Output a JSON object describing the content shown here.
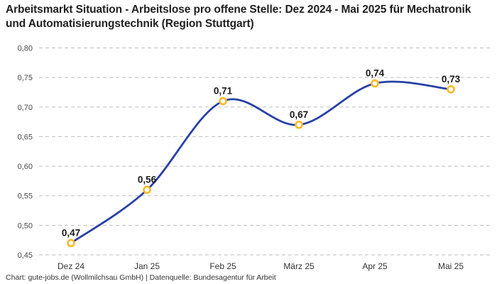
{
  "title": "Arbeitsmarkt Situation - Arbeitslose pro offene Stelle: Dez 2024 - Mai 2025 für Mechatronik und Automatisierungstechnik (Region Stuttgart)",
  "footer": "Chart: gute-jobs.de (Wollmilchsau GmbH) | Datenquelle: Bundesagentur für Arbeit",
  "chart_data": {
    "type": "line",
    "title": "Arbeitsmarkt Situation - Arbeitslose pro offene Stelle: Dez 2024 - Mai 2025 für Mechatronik und Automatisierungstechnik (Region Stuttgart)",
    "categories": [
      "Dez 24",
      "Jan 25",
      "Feb 25",
      "März 25",
      "Apr 25",
      "Mai 25"
    ],
    "values": [
      0.47,
      0.56,
      0.71,
      0.67,
      0.74,
      0.73
    ],
    "value_labels": [
      "0,47",
      "0,56",
      "0,71",
      "0,67",
      "0,74",
      "0,73"
    ],
    "xlabel": "",
    "ylabel": "",
    "ylim": [
      0.45,
      0.8
    ],
    "y_ticks": [
      {
        "value": 0.45,
        "label": "0,45"
      },
      {
        "value": 0.5,
        "label": "0,50"
      },
      {
        "value": 0.55,
        "label": "0,55"
      },
      {
        "value": 0.6,
        "label": "0,60"
      },
      {
        "value": 0.65,
        "label": "0,65"
      },
      {
        "value": 0.7,
        "label": "0,70"
      },
      {
        "value": 0.75,
        "label": "0,75"
      },
      {
        "value": 0.8,
        "label": "0,80"
      }
    ],
    "grid": "horizontal-dashed",
    "legend": "none",
    "smooth": true,
    "colors": {
      "line": "#2840A5",
      "marker_stroke": "#FCB826",
      "marker_fill": "#ffffff",
      "gridline": "#bdbdbd",
      "title_text": "#1f1f1f",
      "label_text": "#1a1a1a",
      "tick_text": "#4a4a4a"
    }
  }
}
